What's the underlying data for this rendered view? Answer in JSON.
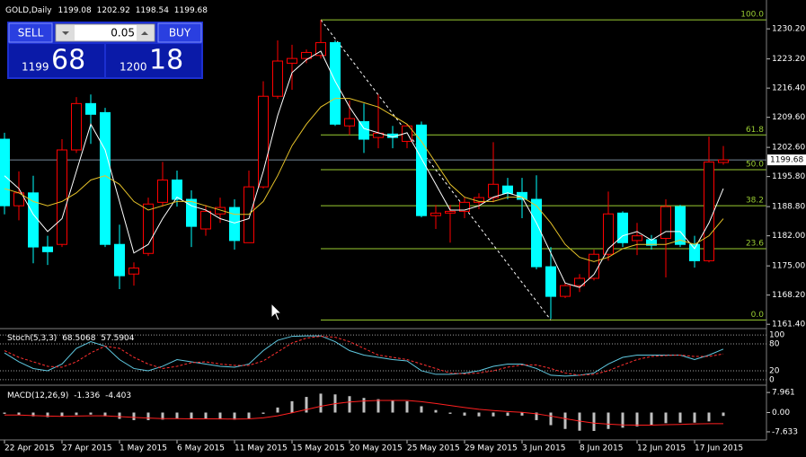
{
  "chart_data": {
    "type": "candlestick",
    "title": "GOLD,Daily",
    "last_ohlc": [
      1199.08,
      1202.92,
      1198.54,
      1199.68
    ],
    "categories": [
      "22 Apr 2015",
      null,
      null,
      null,
      "27 Apr 2015",
      null,
      null,
      null,
      "1 May 2015",
      null,
      null,
      null,
      "6 May 2015",
      null,
      null,
      null,
      "11 May 2015",
      null,
      null,
      null,
      "15 May 2015",
      null,
      null,
      null,
      "20 May 2015",
      null,
      null,
      null,
      "25 May 2015",
      null,
      null,
      null,
      "29 May 2015",
      null,
      null,
      null,
      "3 Jun 2015",
      null,
      null,
      null,
      "8 Jun 2015",
      null,
      null,
      null,
      "12 Jun 2015",
      null,
      null,
      null,
      "17 Jun 2015",
      null,
      null
    ],
    "open": [
      1204.5,
      1189,
      1192,
      1179.4,
      1180,
      1202,
      1212.8,
      1210.7,
      1180,
      1173.1,
      1177.9,
      1189.8,
      1195,
      1190.5,
      1183.6,
      1187.1,
      1188.6,
      1180.4,
      1193.4,
      1214.5,
      1222.2,
      1223.3,
      1224,
      1227,
      1207.6,
      1208.6,
      1204.9,
      1205.7,
      1204,
      1207.8,
      1186.7,
      1187.3,
      1187.7,
      1189.8,
      1190.9,
      1193.6,
      1192.1,
      1190.5,
      1174.8,
      1167.9,
      1170.4,
      1172.1,
      1177.7,
      1187.3,
      1180.9,
      1181.1,
      1181.4,
      1188.8,
      1180,
      1176.2,
      1199.08
    ],
    "high": [
      1206,
      1197,
      1196,
      1182,
      1204.5,
      1214.3,
      1214.9,
      1211.8,
      1184.6,
      1175.8,
      1190.9,
      1199.2,
      1197.2,
      1192.6,
      1189.2,
      1190.9,
      1190.5,
      1197.2,
      1218,
      1227.5,
      1226.5,
      1225.4,
      1232.3,
      1227.5,
      1213.5,
      1212.8,
      1214.9,
      1207.6,
      1208,
      1208.6,
      1189.2,
      1189.2,
      1190.9,
      1191.9,
      1203.8,
      1195.5,
      1195.5,
      1196.1,
      1179.4,
      1171,
      1173.1,
      1178.8,
      1192.3,
      1187.7,
      1185,
      1182.2,
      1190.5,
      1189.2,
      1182,
      1205.1,
      1202.92
    ],
    "low": [
      1187,
      1185.6,
      1175.6,
      1175.2,
      1179.4,
      1201.3,
      1203.4,
      1179.4,
      1169.6,
      1170.4,
      1177.3,
      1188.8,
      1188.8,
      1179.4,
      1182,
      1185,
      1178.8,
      1180.4,
      1193,
      1213.9,
      1216,
      1222.2,
      1223.3,
      1207.6,
      1205.5,
      1201.3,
      1202.4,
      1202.4,
      1202.4,
      1186.3,
      1183.6,
      1180.4,
      1186.1,
      1188.2,
      1189.8,
      1190.5,
      1186.1,
      1174.2,
      1162.7,
      1167.5,
      1168.9,
      1171.6,
      1176.2,
      1179.4,
      1177.5,
      1178.8,
      1172.3,
      1179.4,
      1174.6,
      1175.8,
      1198.54
    ],
    "close": [
      1189,
      1192,
      1179.4,
      1178.3,
      1202,
      1212.8,
      1210.3,
      1180,
      1172.7,
      1174.5,
      1189.4,
      1195,
      1190.5,
      1184.2,
      1187.7,
      1188.6,
      1180.9,
      1193.4,
      1214.5,
      1222.7,
      1223.3,
      1224.7,
      1227,
      1208,
      1209.3,
      1204.5,
      1205.9,
      1204.9,
      1207.6,
      1186.7,
      1187.3,
      1187.7,
      1189.8,
      1190.9,
      1194,
      1191.9,
      1190.5,
      1174.8,
      1167.9,
      1170.4,
      1172.1,
      1177.7,
      1187.1,
      1180.4,
      1182,
      1179.8,
      1188.8,
      1180,
      1176.2,
      1199.2,
      1199.68
    ],
    "up_color": "#ff0000",
    "down_color": "#00ffff",
    "moving_averages": [
      {
        "color": "#ffffff",
        "values": [
          1196,
          1193,
          1187,
          1183,
          1186,
          1197,
          1208,
          1202,
          1190,
          1178,
          1180,
          1186,
          1191,
          1189,
          1188,
          1186,
          1185,
          1186,
          1197,
          1210,
          1220,
          1223,
          1225,
          1218,
          1212,
          1207,
          1206,
          1205,
          1206,
          1200,
          1194,
          1188,
          1188,
          1189,
          1191,
          1192,
          1191,
          1185,
          1178,
          1171,
          1170,
          1173,
          1179,
          1182,
          1183,
          1181,
          1183,
          1183,
          1179,
          1185,
          1193
        ]
      },
      {
        "color": "#e6c229",
        "values": [
          1193,
          1192,
          1190,
          1189,
          1190,
          1192,
          1195,
          1196,
          1194,
          1190,
          1188,
          1189,
          1190,
          1190,
          1189,
          1188,
          1187,
          1187,
          1190,
          1196,
          1203,
          1208,
          1212,
          1214,
          1214,
          1213,
          1212,
          1210,
          1208,
          1204,
          1199,
          1194,
          1191,
          1190,
          1190,
          1191,
          1191,
          1189,
          1185,
          1180,
          1177,
          1176,
          1177,
          1179,
          1180,
          1180,
          1180,
          1181,
          1180,
          1182,
          1186
        ]
      }
    ],
    "ylim": [
      1160.6,
      1236.5
    ],
    "yticks": [
      {
        "value": 1230.2,
        "label": "1230.20"
      },
      {
        "value": 1223.2,
        "label": "1223.20"
      },
      {
        "value": 1216.4,
        "label": "1216.40"
      },
      {
        "value": 1209.6,
        "label": "1209.60"
      },
      {
        "value": 1202.6,
        "label": "1202.60"
      },
      {
        "value": 1195.8,
        "label": "1195.80"
      },
      {
        "value": 1188.8,
        "label": "1188.80"
      },
      {
        "value": 1182,
        "label": "1182.00"
      },
      {
        "value": 1175,
        "label": "1175.00"
      },
      {
        "value": 1168.2,
        "label": "1168.20"
      },
      {
        "value": 1161.4,
        "label": "1161.40"
      }
    ],
    "current_price": 1199.68,
    "fibonacci": {
      "color": "#9acd32",
      "levels": [
        {
          "label": "100.0",
          "value": 1232.3
        },
        {
          "label": "61.8",
          "value": 1205.5
        },
        {
          "label": "50.0",
          "value": 1197.4
        },
        {
          "label": "38.2",
          "value": 1189
        },
        {
          "label": "23.6",
          "value": 1179
        },
        {
          "label": "0.0",
          "value": 1162.4
        }
      ]
    },
    "stochastic": {
      "label": "Stoch(5,3,3)",
      "ylim": [
        -10.2,
        112.2
      ],
      "yticks": [
        100,
        80,
        20,
        0
      ],
      "main": {
        "color": "#5fc8e0",
        "values": [
          60,
          40,
          25,
          20,
          35,
          70,
          85,
          75,
          45,
          25,
          20,
          30,
          45,
          40,
          35,
          30,
          28,
          35,
          65,
          88,
          97,
          98,
          98,
          85,
          65,
          55,
          50,
          45,
          42,
          20,
          12,
          12,
          15,
          20,
          30,
          35,
          35,
          25,
          10,
          8,
          10,
          15,
          35,
          50,
          55,
          55,
          55,
          55,
          45,
          55,
          68.5068
        ]
      },
      "signal": {
        "color": "#ff3030",
        "values": [
          65,
          50,
          40,
          30,
          28,
          40,
          60,
          75,
          70,
          50,
          35,
          25,
          30,
          38,
          40,
          35,
          32,
          32,
          42,
          62,
          82,
          93,
          97,
          95,
          85,
          70,
          55,
          50,
          45,
          35,
          25,
          15,
          13,
          15,
          20,
          28,
          33,
          33,
          25,
          15,
          10,
          12,
          20,
          33,
          45,
          52,
          54,
          55,
          52,
          52,
          57.5904
        ]
      }
    },
    "macd": {
      "label": "MACD(12,26,9)",
      "ylim": [
        -10.5,
        10.5
      ],
      "yticks": [
        7.961,
        {
          "value": 0,
          "label": "0.00"
        },
        -7.633
      ],
      "histogram": {
        "color": "#c0c0c0",
        "values": [
          -0.5,
          -1,
          -1.5,
          -1.8,
          -1.5,
          -1,
          -0.8,
          -1.5,
          -2.5,
          -3,
          -3,
          -2.8,
          -2.5,
          -2.5,
          -2.6,
          -2.7,
          -2.8,
          -2.3,
          -0.5,
          2,
          4.5,
          6.2,
          7.5,
          7.2,
          6.5,
          5.8,
          5.3,
          4.8,
          4.5,
          2.5,
          1,
          -0.5,
          -1.2,
          -1.5,
          -1.5,
          -1.3,
          -1.2,
          -3,
          -5,
          -6.5,
          -7.2,
          -7.3,
          -6.5,
          -6,
          -5.5,
          -5,
          -4.2,
          -4,
          -4,
          -3.5,
          -1.336
        ]
      },
      "signal": {
        "color": "#ff2020",
        "values": [
          -1,
          -1,
          -1.2,
          -1.4,
          -1.5,
          -1.4,
          -1.3,
          -1.3,
          -1.6,
          -1.9,
          -2.2,
          -2.4,
          -2.4,
          -2.5,
          -2.5,
          -2.5,
          -2.6,
          -2.5,
          -2.1,
          -1.3,
          -0.1,
          1.2,
          2.5,
          3.5,
          4.2,
          4.6,
          4.8,
          4.8,
          4.8,
          4.3,
          3.6,
          2.8,
          2,
          1.3,
          0.8,
          0.4,
          0.1,
          -0.5,
          -1.4,
          -2.4,
          -3.4,
          -4.2,
          -4.6,
          -4.9,
          -5,
          -5,
          -4.8,
          -4.7,
          -4.5,
          -4.4,
          -4.403
        ]
      }
    }
  },
  "trade_panel": {
    "sell": "SELL",
    "buy": "BUY",
    "lot": "0.05",
    "bid_main": "1199",
    "bid_pips": "68",
    "ask_main": "1200",
    "ask_pips": "18"
  }
}
